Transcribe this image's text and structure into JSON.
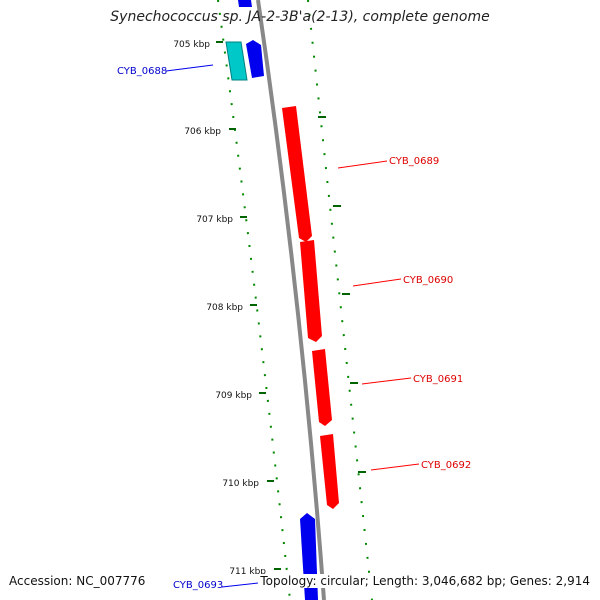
{
  "title": "Synechococcus sp. JA-2-3B'a(2-13), complete genome",
  "accession": "Accession: NC_007776",
  "summary": "Topology: circular; Length: 3,046,682 bp; Genes: 2,914",
  "colors": {
    "forward_gene": "#0000ee",
    "reverse_gene": "#ff0000",
    "rna_gene": "#00c8c8",
    "backbone": "#888888",
    "tick": "#006400",
    "gc_dots": "#008800"
  },
  "ticks": [
    {
      "label": "705 kbp"
    },
    {
      "label": "706 kbp"
    },
    {
      "label": "707 kbp"
    },
    {
      "label": "708 kbp"
    },
    {
      "label": "709 kbp"
    },
    {
      "label": "710 kbp"
    },
    {
      "label": "711 kbp"
    }
  ],
  "genes": [
    {
      "label": "CYB_0688",
      "strand": "forward"
    },
    {
      "label": "CYB_0689",
      "strand": "reverse"
    },
    {
      "label": "CYB_0690",
      "strand": "reverse"
    },
    {
      "label": "CYB_0691",
      "strand": "reverse"
    },
    {
      "label": "CYB_0692",
      "strand": "reverse"
    },
    {
      "label": "CYB_0693",
      "strand": "forward"
    }
  ]
}
